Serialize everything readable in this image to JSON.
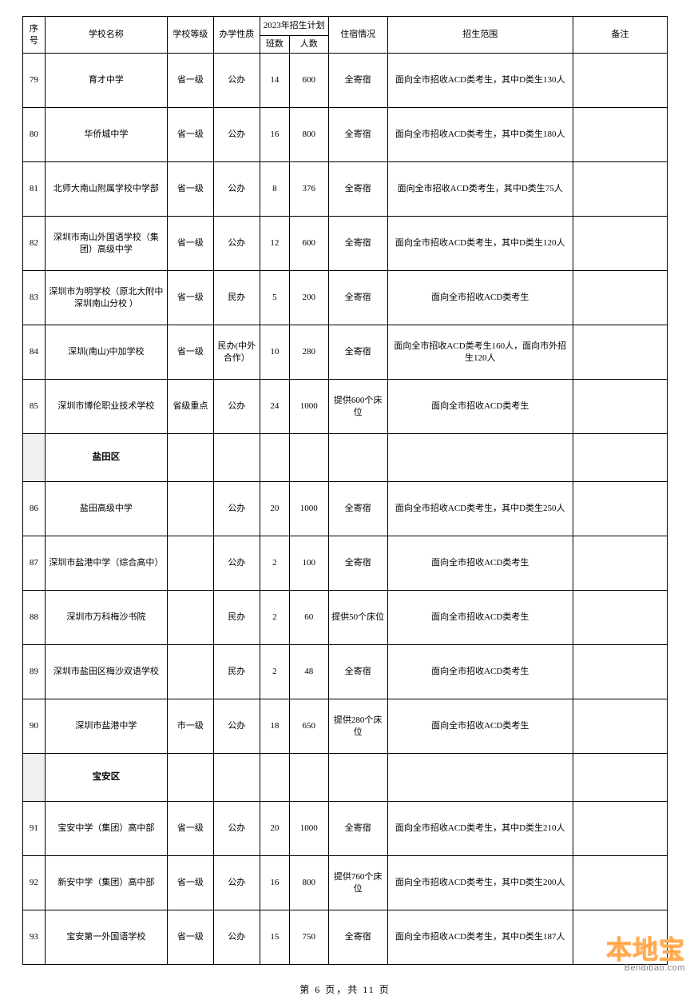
{
  "header": {
    "seq": "序号",
    "name": "学校名称",
    "level": "学校等级",
    "type": "办学性质",
    "plan": "2023年招生计划",
    "classes": "班数",
    "people": "人数",
    "board": "住宿情况",
    "scope": "招生范围",
    "remark": "备注"
  },
  "rows": [
    {
      "kind": "data",
      "seq": "79",
      "name": "育才中学",
      "level": "省一级",
      "type": "公办",
      "classes": "14",
      "people": "600",
      "board": "全寄宿",
      "scope": "面向全市招收ACD类考生，其中D类生130人",
      "remark": ""
    },
    {
      "kind": "data",
      "seq": "80",
      "name": "华侨城中学",
      "level": "省一级",
      "type": "公办",
      "classes": "16",
      "people": "800",
      "board": "全寄宿",
      "scope": "面向全市招收ACD类考生，其中D类生180人",
      "remark": ""
    },
    {
      "kind": "data",
      "seq": "81",
      "name": "北师大南山附属学校中学部",
      "level": "省一级",
      "type": "公办",
      "classes": "8",
      "people": "376",
      "board": "全寄宿",
      "scope": "面向全市招收ACD类考生，其中D类生75人",
      "remark": ""
    },
    {
      "kind": "data",
      "seq": "82",
      "name": "深圳市南山外国语学校（集团）高级中学",
      "level": "省一级",
      "type": "公办",
      "classes": "12",
      "people": "600",
      "board": "全寄宿",
      "scope": "面向全市招收ACD类考生，其中D类生120人",
      "remark": ""
    },
    {
      "kind": "data",
      "seq": "83",
      "name": "深圳市为明学校（原北大附中深圳南山分校 ）",
      "level": "省一级",
      "type": "民办",
      "classes": "5",
      "people": "200",
      "board": "全寄宿",
      "scope": "面向全市招收ACD类考生",
      "remark": ""
    },
    {
      "kind": "data",
      "seq": "84",
      "name": "深圳(南山)中加学校",
      "level": "省一级",
      "type": "民办(中外合作）",
      "classes": "10",
      "people": "280",
      "board": "全寄宿",
      "scope": "面向全市招收ACD类考生160人，面向市外招生120人",
      "remark": ""
    },
    {
      "kind": "data",
      "seq": "85",
      "name": "深圳市博伦职业技术学校",
      "level": "省级重点",
      "type": "公办",
      "classes": "24",
      "people": "1000",
      "board": "提供600个床位",
      "scope": "面向全市招收ACD类考生",
      "remark": ""
    },
    {
      "kind": "section",
      "name": "盐田区"
    },
    {
      "kind": "data",
      "seq": "86",
      "name": "盐田高级中学",
      "level": "",
      "type": "公办",
      "classes": "20",
      "people": "1000",
      "board": "全寄宿",
      "scope": "面向全市招收ACD类考生，其中D类生250人",
      "remark": ""
    },
    {
      "kind": "data",
      "seq": "87",
      "name": "深圳市盐港中学（综合高中）",
      "level": "",
      "type": "公办",
      "classes": "2",
      "people": "100",
      "board": "全寄宿",
      "scope": "面向全市招收ACD类考生",
      "remark": ""
    },
    {
      "kind": "data",
      "seq": "88",
      "name": "深圳市万科梅沙书院",
      "level": "",
      "type": "民办",
      "classes": "2",
      "people": "60",
      "board": "提供50个床位",
      "scope": "面向全市招收ACD类考生",
      "remark": ""
    },
    {
      "kind": "data",
      "seq": "89",
      "name": "深圳市盐田区梅沙双语学校",
      "level": "",
      "type": "民办",
      "classes": "2",
      "people": "48",
      "board": "全寄宿",
      "scope": "面向全市招收ACD类考生",
      "remark": ""
    },
    {
      "kind": "data",
      "seq": "90",
      "name": "深圳市盐港中学",
      "level": "市一级",
      "type": "公办",
      "classes": "18",
      "people": "650",
      "board": "提供280个床位",
      "scope": "面向全市招收ACD类考生",
      "remark": ""
    },
    {
      "kind": "section",
      "name": "宝安区"
    },
    {
      "kind": "data",
      "seq": "91",
      "name": "宝安中学（集团）高中部",
      "level": "省一级",
      "type": "公办",
      "classes": "20",
      "people": "1000",
      "board": "全寄宿",
      "scope": "面向全市招收ACD类考生，其中D类生210人",
      "remark": ""
    },
    {
      "kind": "data",
      "seq": "92",
      "name": "新安中学（集团）高中部",
      "level": "省一级",
      "type": "公办",
      "classes": "16",
      "people": "800",
      "board": "提供760个床位",
      "scope": "面向全市招收ACD类考生，其中D类生200人",
      "remark": ""
    },
    {
      "kind": "data",
      "seq": "93",
      "name": "宝安第一外国语学校",
      "level": "省一级",
      "type": "公办",
      "classes": "15",
      "people": "750",
      "board": "全寄宿",
      "scope": "面向全市招收ACD类考生，其中D类生187人",
      "remark": ""
    }
  ],
  "footer": {
    "text": "第 6 页，共 11 页"
  },
  "watermark": {
    "big": "本地宝",
    "small": "Bendibao.com"
  }
}
